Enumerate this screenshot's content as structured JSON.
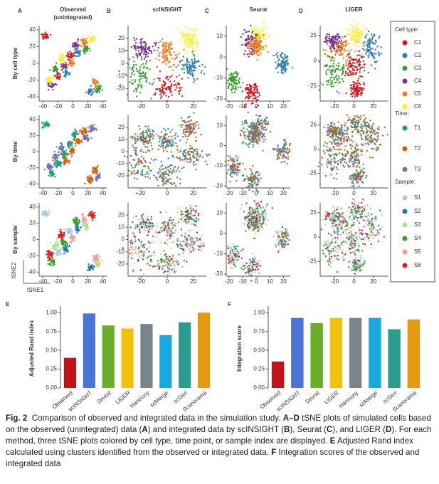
{
  "panels": {
    "columns": [
      {
        "letter": "A",
        "title_lines": [
          "Observed",
          "(unintegrated)"
        ],
        "xlim": [
          -45,
          45
        ],
        "xticks": [
          -40,
          -20,
          0,
          20,
          40
        ],
        "ylim": [
          -45,
          45
        ],
        "yticks": [
          -40,
          -20,
          0,
          20,
          40
        ]
      },
      {
        "letter": "B",
        "title_lines": [
          "scINSIGHT"
        ],
        "xlim": [
          -30,
          30
        ],
        "xticks": [
          -20,
          0,
          20
        ],
        "ylim": [
          -30,
          30
        ],
        "yticks": [
          -20,
          -10,
          0,
          10,
          20
        ]
      },
      {
        "letter": "C",
        "title_lines": [
          "Seurat"
        ],
        "xlim": [
          -22,
          25
        ],
        "xticks": [
          -20,
          -10,
          0,
          10,
          20
        ],
        "ylim": [
          -21,
          15
        ],
        "yticks": [
          -20,
          -10,
          0,
          10
        ]
      },
      {
        "letter": "D",
        "title_lines": [
          "LIGER"
        ],
        "xlim": [
          -35,
          35
        ],
        "xticks": [
          -20,
          0,
          20
        ],
        "ylim": [
          -40,
          35
        ],
        "yticks": [
          -25,
          0,
          25
        ]
      }
    ],
    "row_labels": [
      "By cell type",
      "By time",
      "By sample"
    ],
    "y_axis_label": "tSNE2",
    "x_axis_label": "tSNE1"
  },
  "legend": {
    "sections": [
      {
        "title": "Cell type:",
        "items": [
          {
            "label": "C1",
            "color": "#d7191c"
          },
          {
            "label": "C2",
            "color": "#2c7bb6"
          },
          {
            "label": "C3",
            "color": "#33a02c"
          },
          {
            "label": "C4",
            "color": "#7b3294"
          },
          {
            "label": "C5",
            "color": "#f07c1b"
          },
          {
            "label": "C6",
            "color": "#ffee33"
          }
        ]
      },
      {
        "title": "Time:",
        "items": [
          {
            "label": "T1",
            "color": "#1b9e77"
          },
          {
            "label": "T2",
            "color": "#d95f02"
          },
          {
            "label": "T3",
            "color": "#7570b3"
          }
        ]
      },
      {
        "title": "Sample:",
        "items": [
          {
            "label": "S1",
            "color": "#a6cee3"
          },
          {
            "label": "S2",
            "color": "#1f78b4"
          },
          {
            "label": "S3",
            "color": "#b2df8a"
          },
          {
            "label": "S4",
            "color": "#33a02c"
          },
          {
            "label": "S5",
            "color": "#fb9a99"
          },
          {
            "label": "S6",
            "color": "#e31a1c"
          }
        ]
      }
    ]
  },
  "chart_data": [
    {
      "type": "bar",
      "letter": "E",
      "y_label": "Adjusted Rand index",
      "categories": [
        "Observed",
        "scINSIGHT",
        "Seurat",
        "LIGER",
        "Harmony",
        "scMerge",
        "scGen",
        "Scanorama"
      ],
      "values": [
        0.4,
        0.99,
        0.83,
        0.79,
        0.85,
        0.7,
        0.87,
        1.0
      ],
      "colors": [
        "#c0141a",
        "#4a74d6",
        "#6cae2a",
        "#f2c00f",
        "#78858b",
        "#1aa8e0",
        "#2b9d8e",
        "#e59b10"
      ],
      "ylim": [
        0,
        1.05
      ],
      "yticks": [
        {
          "value": 0,
          "label": "0.00"
        },
        {
          "value": 0.25,
          "label": "0.25"
        },
        {
          "value": 0.5,
          "label": "0.50"
        },
        {
          "value": 0.75,
          "label": "0.75"
        },
        {
          "value": 1,
          "label": "1.00"
        }
      ]
    },
    {
      "type": "bar",
      "letter": "F",
      "y_label": "Integration score",
      "categories": [
        "Observed",
        "scINSIGHT",
        "Seurat",
        "LIGER",
        "Harmony",
        "scMerge",
        "scGen",
        "Scanorama"
      ],
      "values": [
        0.35,
        0.93,
        0.86,
        0.93,
        0.93,
        0.93,
        0.78,
        0.91
      ],
      "colors": [
        "#c0141a",
        "#4a74d6",
        "#6cae2a",
        "#f2c00f",
        "#78858b",
        "#1aa8e0",
        "#2b9d8e",
        "#e59b10"
      ],
      "ylim": [
        0,
        1.05
      ],
      "yticks": [
        {
          "value": 0,
          "label": "0.00"
        },
        {
          "value": 0.25,
          "label": "0.25"
        },
        {
          "value": 0.5,
          "label": "0.50"
        },
        {
          "value": 0.75,
          "label": "0.75"
        },
        {
          "value": 1,
          "label": "1.00"
        }
      ]
    }
  ],
  "caption": [
    {
      "text": "Fig. 2",
      "bold": true
    },
    {
      "text": "  Comparison of observed and integrated data in the simulation study. ",
      "bold": false
    },
    {
      "text": "A–D",
      "bold": true
    },
    {
      "text": " tSNE plots of simulated cells based on the observed (unintegrated) data (",
      "bold": false
    },
    {
      "text": "A",
      "bold": true
    },
    {
      "text": ") and integrated data by scINSIGHT (",
      "bold": false
    },
    {
      "text": "B",
      "bold": true
    },
    {
      "text": "), Seurat (",
      "bold": false
    },
    {
      "text": "C",
      "bold": true
    },
    {
      "text": "), and LIGER (",
      "bold": false
    },
    {
      "text": "D",
      "bold": true
    },
    {
      "text": "). For each method, three tSNE plots colored by cell type, time point, or sample index are displayed. ",
      "bold": false
    },
    {
      "text": "E",
      "bold": true
    },
    {
      "text": " Adjusted Rand index calculated using clusters identified from the observed or integrated data. ",
      "bold": false
    },
    {
      "text": "F",
      "bold": true
    },
    {
      "text": " Integration scores of the observed and integrated data",
      "bold": false
    }
  ]
}
